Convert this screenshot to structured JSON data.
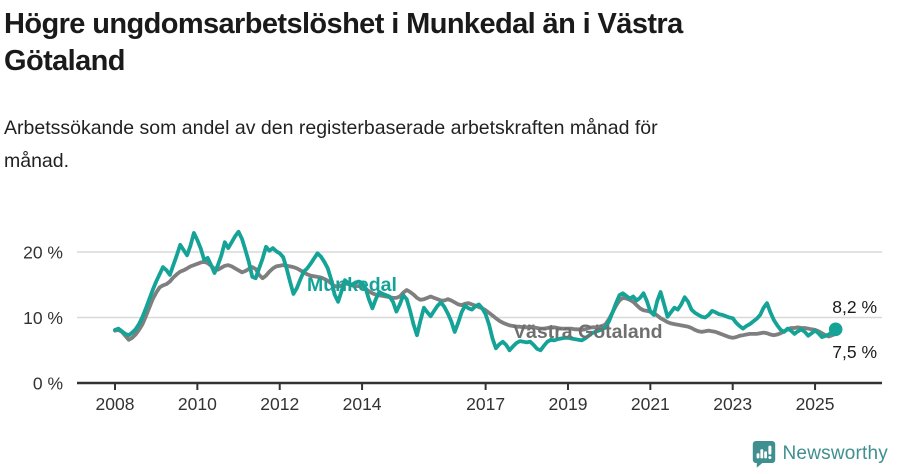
{
  "header": {
    "title": "Högre ungdomsarbetslöshet i Munkedal än i Västra\nGötaland",
    "subtitle": "Arbetssökande som andel av den registerbaserade arbetskraften månad för\nmånad."
  },
  "footer": {
    "brand": "Newsworthy",
    "logo_icon": "bar-chart-speech-bubble",
    "brand_color": "#3f8e90"
  },
  "colors": {
    "munkedal": "#14a396",
    "vastra_gotaland": "#7f7f7f",
    "grid": "#d9d9d9",
    "axis": "#333333",
    "tick_text": "#333333",
    "value_label": "#1a1a1a"
  },
  "chart_data": {
    "type": "line",
    "unit": "%",
    "x_start_year": 2008,
    "x_step": "month",
    "x_end_label_note": "monthly series Jan 2008 – Jul 2025",
    "xlim": [
      2007.8,
      2025.9
    ],
    "ylim": [
      0,
      24
    ],
    "grid": "horizontal",
    "x_ticks": [
      2008,
      2010,
      2012,
      2014,
      2017,
      2019,
      2021,
      2023,
      2025
    ],
    "x_tick_labels": [
      "2008",
      "2010",
      "2012",
      "2014",
      "2017",
      "2019",
      "2021",
      "2023",
      "2025"
    ],
    "y_ticks": [
      0,
      10,
      20
    ],
    "y_tick_labels": [
      "0 %",
      "10 %",
      "20 %"
    ],
    "series": [
      {
        "name": "Munkedal",
        "label": "Munkedal",
        "end_label": "8,2 %",
        "end_value": 8.2,
        "color": "#14a396",
        "end_dot": true,
        "values": [
          8.1,
          8.3,
          7.9,
          7.5,
          7.3,
          7.7,
          8.2,
          9.0,
          10.1,
          11.4,
          12.8,
          14.2,
          15.5,
          16.6,
          17.7,
          17.2,
          16.5,
          18.0,
          19.5,
          21.1,
          20.3,
          19.5,
          21.0,
          22.9,
          21.8,
          20.5,
          18.8,
          19.1,
          18.0,
          16.8,
          18.0,
          19.5,
          21.5,
          20.6,
          21.5,
          22.4,
          23.1,
          22.0,
          20.3,
          18.5,
          16.2,
          16.0,
          17.5,
          19.0,
          20.8,
          20.2,
          20.6,
          20.1,
          19.8,
          19.2,
          17.5,
          15.5,
          13.6,
          14.5,
          15.8,
          17.0,
          17.5,
          18.2,
          19.0,
          19.8,
          19.3,
          18.5,
          17.5,
          15.8,
          13.5,
          12.4,
          14.0,
          15.7,
          15.2,
          15.0,
          15.3,
          15.5,
          15.3,
          14.5,
          12.8,
          11.4,
          12.8,
          13.9,
          13.6,
          13.4,
          13.2,
          12.4,
          10.9,
          12.0,
          13.4,
          12.8,
          11.0,
          8.9,
          7.3,
          9.5,
          11.5,
          10.8,
          10.2,
          11.0,
          11.8,
          12.3,
          11.6,
          10.6,
          9.4,
          7.8,
          9.2,
          10.8,
          11.8,
          11.4,
          11.2,
          11.7,
          12.0,
          11.4,
          10.5,
          8.9,
          6.8,
          5.3,
          5.9,
          6.3,
          5.8,
          5.0,
          5.6,
          6.1,
          6.4,
          6.3,
          6.2,
          6.3,
          5.8,
          5.2,
          5.0,
          5.7,
          6.3,
          6.6,
          6.5,
          6.7,
          6.8,
          6.9,
          6.9,
          6.8,
          6.7,
          6.6,
          6.5,
          6.8,
          7.2,
          7.6,
          7.8,
          8.0,
          8.2,
          8.5,
          9.5,
          10.8,
          12.2,
          13.4,
          13.7,
          13.3,
          12.9,
          13.2,
          12.6,
          13.0,
          13.7,
          12.5,
          10.9,
          10.4,
          12.5,
          13.9,
          12.0,
          10.1,
          10.8,
          11.5,
          11.2,
          12.0,
          13.1,
          12.4,
          11.2,
          10.7,
          10.4,
          10.1,
          10.0,
          10.4,
          11.0,
          10.8,
          10.5,
          10.4,
          10.2,
          10.0,
          9.9,
          9.2,
          8.7,
          8.3,
          8.7,
          9.0,
          9.4,
          9.8,
          10.4,
          11.5,
          12.2,
          10.8,
          9.6,
          8.8,
          8.1,
          7.8,
          8.3,
          8.0,
          7.5,
          7.9,
          8.2,
          7.8,
          7.2,
          7.6,
          8.0,
          7.6,
          7.0,
          7.2,
          7.4,
          7.8,
          8.2
        ]
      },
      {
        "name": "Västra Götaland",
        "label": "Västra Götaland",
        "end_label": "7,5 %",
        "end_value": 7.5,
        "color": "#7f7f7f",
        "end_dot": false,
        "values": [
          8.0,
          8.1,
          7.8,
          7.2,
          6.6,
          6.9,
          7.4,
          8.1,
          9.0,
          10.2,
          11.5,
          12.8,
          13.8,
          14.6,
          14.9,
          15.1,
          15.5,
          16.1,
          16.6,
          17.0,
          17.2,
          17.5,
          17.8,
          18.0,
          18.2,
          18.4,
          18.5,
          18.3,
          17.9,
          17.4,
          17.3,
          17.6,
          17.9,
          18.0,
          17.8,
          17.5,
          17.2,
          16.9,
          17.1,
          17.4,
          17.7,
          17.4,
          16.5,
          16.0,
          16.4,
          17.0,
          17.5,
          17.8,
          17.9,
          18.0,
          17.9,
          17.8,
          17.7,
          17.5,
          17.2,
          16.9,
          16.6,
          16.4,
          16.3,
          16.2,
          16.1,
          15.9,
          15.6,
          15.2,
          14.8,
          14.7,
          14.9,
          15.2,
          15.1,
          14.9,
          14.8,
          14.8,
          14.7,
          14.4,
          14.0,
          13.7,
          13.5,
          13.4,
          13.3,
          13.2,
          13.1,
          13.0,
          13.0,
          13.2,
          13.8,
          14.2,
          13.9,
          13.5,
          13.0,
          12.7,
          12.8,
          13.0,
          13.2,
          13.0,
          12.8,
          12.6,
          12.6,
          12.8,
          12.6,
          12.3,
          12.0,
          11.9,
          12.1,
          12.2,
          12.0,
          11.8,
          11.6,
          11.4,
          11.1,
          10.7,
          10.3,
          9.9,
          9.5,
          9.2,
          9.0,
          8.8,
          8.7,
          8.6,
          8.6,
          8.5,
          8.5,
          8.6,
          8.5,
          8.4,
          8.3,
          8.3,
          8.4,
          8.5,
          8.5,
          8.4,
          8.3,
          8.3,
          8.3,
          8.3,
          8.2,
          8.2,
          8.1,
          8.2,
          8.4,
          8.5,
          8.5,
          8.6,
          8.7,
          9.0,
          9.8,
          10.8,
          11.8,
          12.6,
          13.0,
          12.9,
          12.7,
          12.4,
          11.9,
          11.4,
          11.1,
          11.0,
          10.9,
          10.7,
          10.3,
          9.9,
          9.6,
          9.3,
          9.1,
          9.0,
          8.9,
          8.8,
          8.7,
          8.6,
          8.4,
          8.1,
          7.9,
          7.8,
          7.9,
          8.0,
          7.9,
          7.8,
          7.6,
          7.4,
          7.2,
          7.0,
          6.9,
          7.0,
          7.2,
          7.3,
          7.4,
          7.5,
          7.5,
          7.5,
          7.6,
          7.7,
          7.6,
          7.4,
          7.3,
          7.4,
          7.6,
          7.9,
          8.2,
          8.4,
          8.4,
          8.5,
          8.4,
          8.4,
          8.3,
          8.2,
          8.1,
          7.9,
          7.6,
          7.3,
          7.1,
          7.3,
          7.5
        ]
      }
    ],
    "legend_position": "inline-labels"
  }
}
